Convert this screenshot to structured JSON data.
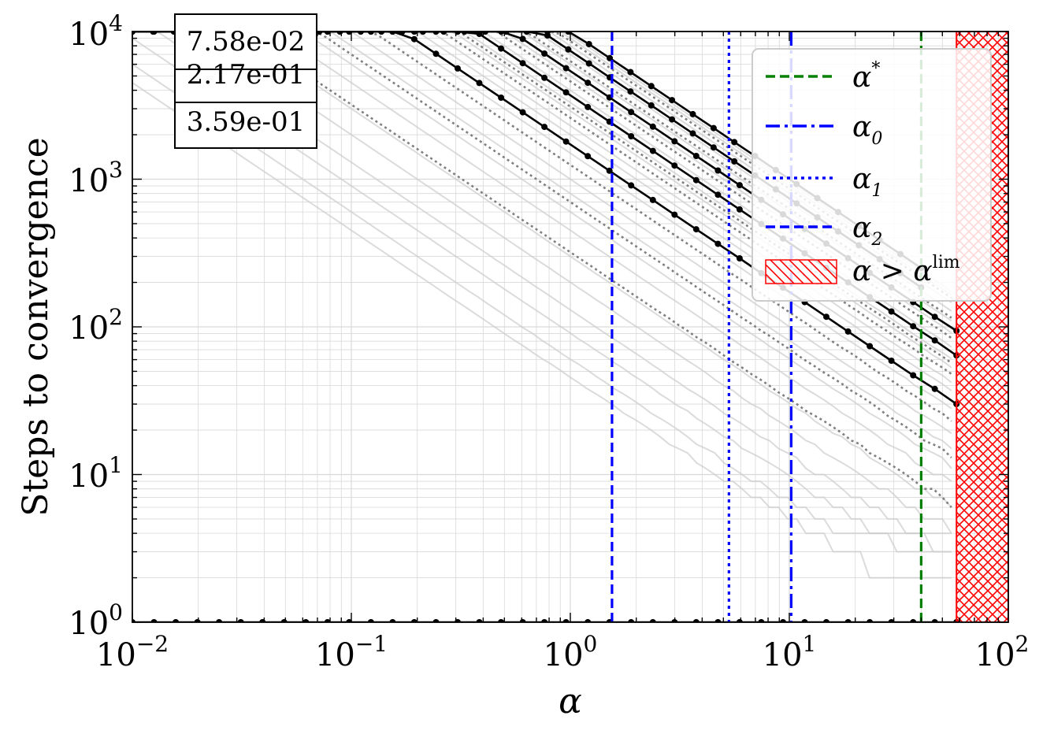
{
  "chart_data": {
    "type": "line",
    "title": "",
    "xlabel": "α",
    "ylabel": "Steps to convergence",
    "xscale": "log",
    "yscale": "log",
    "xlim": [
      0.01,
      100
    ],
    "ylim": [
      1,
      10000
    ],
    "grid": true,
    "x_ticks": [
      {
        "base": "10",
        "exp": "−2"
      },
      {
        "base": "10",
        "exp": "−1"
      },
      {
        "base": "10",
        "exp": "0"
      },
      {
        "base": "10",
        "exp": "1"
      },
      {
        "base": "10",
        "exp": "2"
      }
    ],
    "y_ticks": [
      {
        "base": "10",
        "exp": "0"
      },
      {
        "base": "10",
        "exp": "1"
      },
      {
        "base": "10",
        "exp": "2"
      },
      {
        "base": "10",
        "exp": "3"
      },
      {
        "base": "10",
        "exp": "4"
      }
    ],
    "vertical_lines": [
      {
        "name": "α*",
        "x": 40,
        "color": "#008000",
        "style": "dashed"
      },
      {
        "name": "α0",
        "x": 10.2,
        "color": "#0000ff",
        "style": "dashdot"
      },
      {
        "name": "α1",
        "x": 5.3,
        "color": "#0000ff",
        "style": "dotted"
      },
      {
        "name": "α2",
        "x": 1.55,
        "color": "#0000ff",
        "style": "dashed"
      }
    ],
    "hatched_region": {
      "name": "α > α^lim",
      "x_from": 58,
      "x_to": 100,
      "color": "#ff0000"
    },
    "legend": {
      "placement": "top-right",
      "entries": [
        {
          "label": "α",
          "sup": "*",
          "sub": ""
        },
        {
          "label": "α",
          "sup": "",
          "sub": "0"
        },
        {
          "label": "α",
          "sup": "",
          "sub": "1"
        },
        {
          "label": "α",
          "sup": "",
          "sub": "2"
        },
        {
          "label": "α > α",
          "sup": "lim",
          "sub": ""
        }
      ]
    },
    "labels_box": [
      "7.58e-02",
      "2.17e-01",
      "3.59e-01"
    ],
    "highlighted_series": [
      {
        "c": 10000,
        "floor": 6,
        "xmax": 40
      },
      {
        "c": 7400,
        "floor": 5,
        "xmax": 40
      },
      {
        "c": 5400,
        "floor": 4,
        "xmax": 58
      },
      {
        "c": 3700,
        "floor": 3,
        "xmax": 58
      },
      {
        "c": 1720,
        "floor": 2,
        "xmax": 58
      },
      {
        "c": 0,
        "floor": 1,
        "xmax": 58
      }
    ],
    "dotted_series_prefactors": [
      8600,
      6300,
      4600,
      3100,
      2600,
      1250,
      700,
      320
    ],
    "faint_series_prefactors": [
      9500,
      9000,
      8000,
      7000,
      6000,
      5000,
      4000,
      3300,
      2900,
      2300,
      2000,
      1500,
      1000,
      800,
      600,
      450,
      300,
      200,
      130,
      90,
      60,
      45
    ]
  },
  "colors": {
    "highlight": "#000000",
    "dotted": "#808080",
    "faint": "#cccccc",
    "grid": "#d9d9d9"
  }
}
